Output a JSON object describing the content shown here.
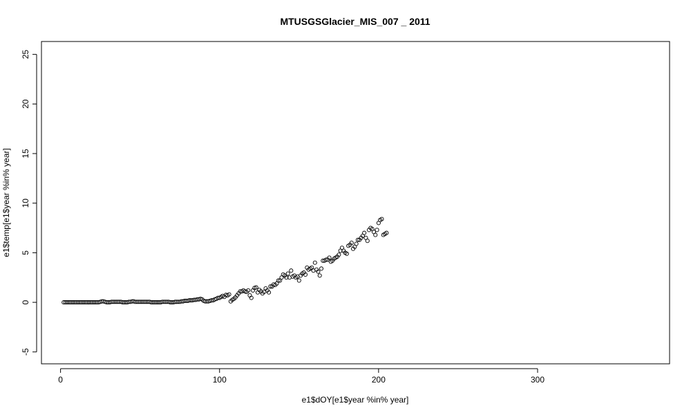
{
  "chart_data": {
    "type": "scatter",
    "title": "MTUSGSGlacier_MIS_007 _ 2011",
    "xlabel": "e1$dOY[e1$year %in% year]",
    "ylabel": "e1$temp[e1$year %in% year]",
    "xlim": [
      -12,
      383
    ],
    "ylim": [
      -6.2,
      26.3
    ],
    "xticks": [
      0,
      100,
      200,
      300
    ],
    "yticks": [
      -5,
      0,
      5,
      10,
      15,
      20,
      25
    ],
    "grid": false,
    "legend": "none",
    "marker": "open-circle",
    "points": [
      [
        2,
        0
      ],
      [
        3,
        0
      ],
      [
        4,
        0
      ],
      [
        5,
        0
      ],
      [
        6,
        0
      ],
      [
        7,
        0
      ],
      [
        8,
        0
      ],
      [
        9,
        0
      ],
      [
        10,
        0
      ],
      [
        11,
        0
      ],
      [
        12,
        0
      ],
      [
        13,
        0
      ],
      [
        14,
        0
      ],
      [
        15,
        0
      ],
      [
        16,
        0
      ],
      [
        17,
        0
      ],
      [
        18,
        0
      ],
      [
        19,
        0
      ],
      [
        20,
        0
      ],
      [
        21,
        0
      ],
      [
        22,
        0
      ],
      [
        23,
        0
      ],
      [
        24,
        0
      ],
      [
        25,
        0.05
      ],
      [
        26,
        0.1
      ],
      [
        27,
        0.1
      ],
      [
        28,
        0.05
      ],
      [
        29,
        0
      ],
      [
        30,
        0
      ],
      [
        31,
        0
      ],
      [
        32,
        0.05
      ],
      [
        33,
        0.05
      ],
      [
        34,
        0.05
      ],
      [
        35,
        0.05
      ],
      [
        36,
        0.05
      ],
      [
        37,
        0.05
      ],
      [
        38,
        0.05
      ],
      [
        39,
        0
      ],
      [
        40,
        0
      ],
      [
        41,
        0
      ],
      [
        42,
        0
      ],
      [
        43,
        0.05
      ],
      [
        44,
        0.05
      ],
      [
        45,
        0.1
      ],
      [
        46,
        0.1
      ],
      [
        47,
        0.05
      ],
      [
        48,
        0.05
      ],
      [
        49,
        0.05
      ],
      [
        50,
        0.05
      ],
      [
        51,
        0.05
      ],
      [
        52,
        0.05
      ],
      [
        53,
        0.05
      ],
      [
        54,
        0.05
      ],
      [
        55,
        0.05
      ],
      [
        56,
        0.05
      ],
      [
        57,
        0
      ],
      [
        58,
        0
      ],
      [
        59,
        0
      ],
      [
        60,
        0
      ],
      [
        61,
        0
      ],
      [
        62,
        0
      ],
      [
        63,
        0
      ],
      [
        64,
        0.05
      ],
      [
        65,
        0.05
      ],
      [
        66,
        0.05
      ],
      [
        67,
        0.05
      ],
      [
        68,
        0.05
      ],
      [
        69,
        0
      ],
      [
        70,
        0
      ],
      [
        71,
        0
      ],
      [
        72,
        0.05
      ],
      [
        73,
        0.05
      ],
      [
        74,
        0.05
      ],
      [
        75,
        0.05
      ],
      [
        76,
        0.1
      ],
      [
        77,
        0.1
      ],
      [
        78,
        0.15
      ],
      [
        79,
        0.15
      ],
      [
        80,
        0.15
      ],
      [
        81,
        0.2
      ],
      [
        82,
        0.2
      ],
      [
        83,
        0.2
      ],
      [
        84,
        0.25
      ],
      [
        85,
        0.25
      ],
      [
        86,
        0.3
      ],
      [
        87,
        0.3
      ],
      [
        88,
        0.35
      ],
      [
        89,
        0.3
      ],
      [
        90,
        0.15
      ],
      [
        91,
        0.1
      ],
      [
        92,
        0.1
      ],
      [
        93,
        0.1
      ],
      [
        94,
        0.15
      ],
      [
        95,
        0.2
      ],
      [
        96,
        0.2
      ],
      [
        97,
        0.3
      ],
      [
        98,
        0.35
      ],
      [
        99,
        0.45
      ],
      [
        100,
        0.45
      ],
      [
        101,
        0.55
      ],
      [
        102,
        0.65
      ],
      [
        103,
        0.55
      ],
      [
        104,
        0.75
      ],
      [
        105,
        0.7
      ],
      [
        106,
        0.8
      ],
      [
        107,
        0.1
      ],
      [
        108,
        0.25
      ],
      [
        109,
        0.35
      ],
      [
        110,
        0.5
      ],
      [
        111,
        0.7
      ],
      [
        112,
        0.9
      ],
      [
        113,
        1.1
      ],
      [
        114,
        1.1
      ],
      [
        115,
        1.2
      ],
      [
        116,
        1.1
      ],
      [
        117,
        1.05
      ],
      [
        118,
        1.2
      ],
      [
        119,
        0.7
      ],
      [
        120,
        0.45
      ],
      [
        121,
        1.2
      ],
      [
        122,
        1.45
      ],
      [
        123,
        1.5
      ],
      [
        124,
        1.0
      ],
      [
        125,
        1.25
      ],
      [
        126,
        1.1
      ],
      [
        127,
        0.9
      ],
      [
        128,
        1.05
      ],
      [
        129,
        1.4
      ],
      [
        130,
        1.2
      ],
      [
        131,
        1.0
      ],
      [
        132,
        1.6
      ],
      [
        133,
        1.6
      ],
      [
        134,
        1.8
      ],
      [
        135,
        1.75
      ],
      [
        136,
        1.9
      ],
      [
        137,
        2.2
      ],
      [
        138,
        2.2
      ],
      [
        139,
        2.5
      ],
      [
        140,
        2.8
      ],
      [
        141,
        2.7
      ],
      [
        142,
        2.5
      ],
      [
        143,
        2.9
      ],
      [
        144,
        2.5
      ],
      [
        145,
        3.2
      ],
      [
        146,
        2.6
      ],
      [
        147,
        2.7
      ],
      [
        148,
        2.5
      ],
      [
        149,
        2.6
      ],
      [
        150,
        2.2
      ],
      [
        151,
        2.7
      ],
      [
        152,
        2.9
      ],
      [
        153,
        3.0
      ],
      [
        154,
        2.8
      ],
      [
        155,
        3.5
      ],
      [
        156,
        3.3
      ],
      [
        157,
        3.4
      ],
      [
        158,
        3.5
      ],
      [
        159,
        3.2
      ],
      [
        160,
        4.0
      ],
      [
        161,
        3.3
      ],
      [
        162,
        3.1
      ],
      [
        163,
        2.7
      ],
      [
        164,
        3.4
      ],
      [
        165,
        4.2
      ],
      [
        166,
        4.2
      ],
      [
        167,
        4.3
      ],
      [
        168,
        4.3
      ],
      [
        169,
        4.5
      ],
      [
        170,
        4.1
      ],
      [
        171,
        4.2
      ],
      [
        172,
        4.4
      ],
      [
        173,
        4.5
      ],
      [
        174,
        4.6
      ],
      [
        175,
        4.8
      ],
      [
        176,
        5.2
      ],
      [
        177,
        5.5
      ],
      [
        178,
        5.2
      ],
      [
        179,
        5.0
      ],
      [
        180,
        4.9
      ],
      [
        181,
        5.7
      ],
      [
        182,
        5.8
      ],
      [
        183,
        6.0
      ],
      [
        184,
        5.4
      ],
      [
        185,
        5.6
      ],
      [
        186,
        5.9
      ],
      [
        187,
        6.3
      ],
      [
        188,
        6.3
      ],
      [
        189,
        6.5
      ],
      [
        190,
        6.7
      ],
      [
        191,
        7.0
      ],
      [
        192,
        6.5
      ],
      [
        193,
        6.2
      ],
      [
        194,
        7.3
      ],
      [
        195,
        7.5
      ],
      [
        196,
        7.4
      ],
      [
        197,
        7.1
      ],
      [
        198,
        6.8
      ],
      [
        199,
        7.3
      ],
      [
        200,
        8.0
      ],
      [
        201,
        8.3
      ],
      [
        202,
        8.4
      ],
      [
        203,
        6.8
      ],
      [
        204,
        6.9
      ],
      [
        205,
        7.0
      ]
    ]
  }
}
